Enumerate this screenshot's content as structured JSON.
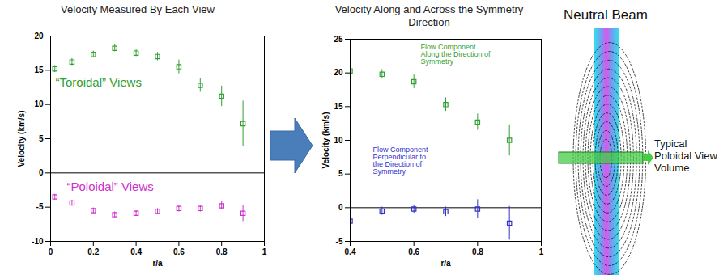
{
  "chart_data": [
    {
      "type": "scatter",
      "title": "Velocity Measured By Each View",
      "x_label": "r/a",
      "y_label": "Velocity (km/s)",
      "x": [
        0.02,
        0.1,
        0.2,
        0.3,
        0.4,
        0.5,
        0.6,
        0.7,
        0.8,
        0.9
      ],
      "series": [
        {
          "name": "“Toroidal” Views",
          "color": "#33a033",
          "marker": "square",
          "values": [
            15.2,
            16.2,
            17.3,
            18.2,
            17.5,
            17.0,
            15.5,
            12.8,
            11.2,
            7.2
          ],
          "errors": [
            0.5,
            0.5,
            0.5,
            0.5,
            0.5,
            0.6,
            1.0,
            1.0,
            1.5,
            3.3
          ]
        },
        {
          "name": "“Poloidal” Views",
          "color": "#cc33cc",
          "marker": "square",
          "values": [
            -3.5,
            -4.4,
            -5.5,
            -6.1,
            -5.9,
            -5.6,
            -5.2,
            -5.2,
            -4.8,
            -5.9
          ],
          "errors": [
            0.4,
            0.4,
            0.4,
            0.4,
            0.4,
            0.4,
            0.5,
            0.5,
            0.6,
            1.2
          ]
        }
      ],
      "xlim": [
        0,
        1
      ],
      "xticks": [
        0,
        0.2,
        0.4,
        0.6,
        0.8,
        1
      ],
      "ylim": [
        -10,
        20
      ],
      "yticks": [
        -10,
        -5,
        0,
        5,
        10,
        15,
        20
      ]
    },
    {
      "type": "scatter",
      "title": "Velocity Along and Across the Symmetry Direction",
      "x_label": "r/a",
      "y_label": "Velocity (km/s)",
      "x": [
        0.4,
        0.5,
        0.6,
        0.7,
        0.8,
        0.9
      ],
      "series": [
        {
          "name": "Flow Component Along the Direction of Symmetry",
          "color": "#33a033",
          "marker": "square",
          "values": [
            20.3,
            19.8,
            18.7,
            15.3,
            12.7,
            10.0
          ],
          "errors": [
            0.8,
            0.7,
            1.0,
            1.0,
            1.2,
            2.3
          ]
        },
        {
          "name": "Flow Component Perpendicular to the Direction of Symmetry",
          "color": "#3333cc",
          "marker": "square",
          "values": [
            -2.0,
            -0.5,
            -0.2,
            -0.6,
            -0.2,
            -2.3
          ],
          "errors": [
            1.3,
            0.6,
            0.6,
            0.7,
            1.4,
            2.5
          ]
        }
      ],
      "xlim": [
        0.4,
        1
      ],
      "xticks": [
        0.4,
        0.6,
        0.8,
        1
      ],
      "ylim": [
        -5,
        25
      ],
      "yticks": [
        -5,
        0,
        5,
        10,
        15,
        20,
        25
      ]
    }
  ],
  "diagram": {
    "title": "Neutral Beam",
    "label": "Typical Poloidal View Volume"
  }
}
